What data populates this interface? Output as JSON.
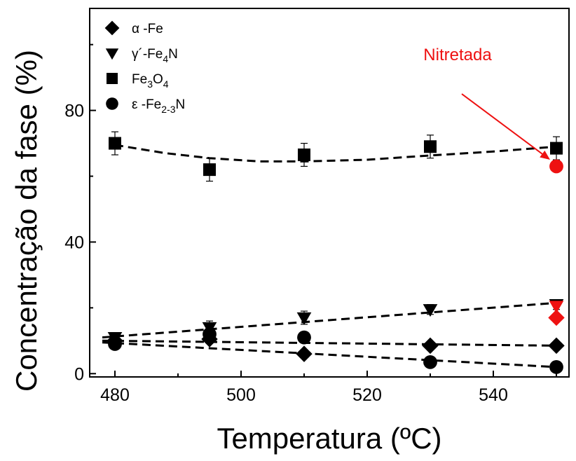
{
  "chart_data": {
    "type": "scatter",
    "xlabel": "Temperatura (ºC)",
    "ylabel": "Concentração da fase (%)",
    "xlim": [
      476,
      552
    ],
    "ylim": [
      -1,
      111
    ],
    "xticks": [
      480,
      500,
      520,
      540
    ],
    "yticks": [
      0,
      40,
      80
    ],
    "grid": false,
    "legend_position": "top-left",
    "series": [
      {
        "name": "α -Fe",
        "marker": "diamond",
        "color": "#000000",
        "x": [
          480,
          495,
          510,
          530,
          550
        ],
        "y": [
          10,
          10.5,
          6,
          8.5,
          8.5
        ],
        "fit": [
          [
            478,
            10
          ],
          [
            550,
            8.5
          ]
        ]
      },
      {
        "name": "γ´-Fe4N",
        "marker": "triangle-down",
        "color": "#000000",
        "x": [
          480,
          495,
          510,
          530,
          550
        ],
        "y": [
          11,
          14,
          17,
          19.5,
          21
        ],
        "err": [
          1.5,
          2,
          2,
          1.5,
          1.5
        ],
        "fit": [
          [
            478,
            11
          ],
          [
            550,
            21.5
          ]
        ]
      },
      {
        "name": "Fe3O4",
        "marker": "square",
        "color": "#000000",
        "x": [
          480,
          495,
          510,
          530,
          550
        ],
        "y": [
          70,
          62,
          66.5,
          69,
          68.5
        ],
        "err": [
          3.5,
          3.5,
          3.5,
          3.5,
          3.5
        ],
        "fit": [
          [
            480,
            69.5
          ],
          [
            488,
            67
          ],
          [
            495,
            65.5
          ],
          [
            503,
            64.5
          ],
          [
            510,
            64.5
          ],
          [
            520,
            65
          ],
          [
            530,
            66.3
          ],
          [
            540,
            67.5
          ],
          [
            550,
            69
          ]
        ]
      },
      {
        "name": "ε -Fe2-3N",
        "marker": "circle",
        "color": "#000000",
        "x": [
          480,
          495,
          510,
          530,
          550
        ],
        "y": [
          9,
          12,
          11,
          3.5,
          2
        ],
        "fit": [
          [
            478,
            9.5
          ],
          [
            550,
            2
          ]
        ]
      }
    ],
    "highlight": {
      "label": "Nitretada",
      "color": "#ee1111",
      "x": 550,
      "points": [
        {
          "marker": "circle",
          "y": 63
        },
        {
          "marker": "triangle-down",
          "y": 20.5
        },
        {
          "marker": "diamond",
          "y": 17
        }
      ],
      "arrow_from": [
        535,
        85
      ],
      "arrow_to": [
        549,
        65
      ]
    }
  },
  "legend": [
    {
      "marker": "diamond",
      "prefix": "α -Fe",
      "sub1": "",
      "mid": "",
      "sub2": "",
      "suffix": ""
    },
    {
      "marker": "triangle-down",
      "prefix": "γ´-Fe",
      "sub1": "4",
      "mid": "N",
      "sub2": "",
      "suffix": ""
    },
    {
      "marker": "square",
      "prefix": "Fe",
      "sub1": "3",
      "mid": "O",
      "sub2": "4",
      "suffix": ""
    },
    {
      "marker": "circle",
      "prefix": "ε -Fe",
      "sub1": "2-3",
      "mid": "N",
      "sub2": "",
      "suffix": ""
    }
  ]
}
